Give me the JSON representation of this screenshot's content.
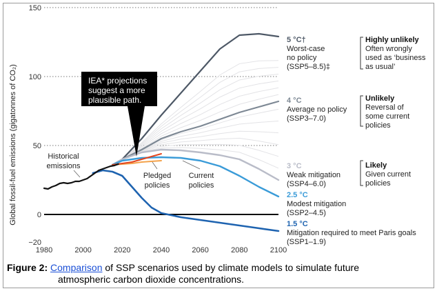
{
  "chart_data": {
    "type": "line",
    "ylabel": "Global fossil-fuel emissions (gigatonnes of CO₂)",
    "xlim": [
      1980,
      2100
    ],
    "ylim": [
      -20,
      150
    ],
    "xticks": [
      "1980",
      "2000",
      "2020",
      "2040",
      "2060",
      "2080",
      "2100"
    ],
    "yticks": [
      "150",
      "100",
      "50",
      "0",
      "−20"
    ],
    "grid": "dotted horizontal lines at 50, 100 and 150",
    "series": [
      {
        "name": "Historical emissions",
        "color": "#111111",
        "x": [
          1980,
          1982,
          1984,
          1986,
          1988,
          1990,
          1992,
          1994,
          1996,
          1998,
          2000,
          2002,
          2004,
          2006,
          2008,
          2010,
          2012,
          2014,
          2016,
          2018
        ],
        "y": [
          19,
          18.5,
          20,
          21,
          22.5,
          23,
          22.5,
          23,
          24,
          24,
          25,
          26,
          28,
          30,
          32,
          33,
          34,
          35,
          35.5,
          36.5
        ]
      },
      {
        "name": "SSP5-8.5",
        "color": "#4d5866",
        "x": [
          2015,
          2020,
          2030,
          2040,
          2050,
          2060,
          2070,
          2080,
          2090,
          2100
        ],
        "y": [
          36,
          40,
          55,
          72,
          88,
          104,
          120,
          130,
          131,
          129
        ]
      },
      {
        "name": "SSP3-7.0",
        "color": "#7d8894",
        "x": [
          2015,
          2020,
          2030,
          2040,
          2050,
          2060,
          2070,
          2080,
          2090,
          2100
        ],
        "y": [
          36,
          40,
          47,
          55,
          60,
          64,
          69,
          74,
          78,
          82
        ]
      },
      {
        "name": "SSP4-6.0",
        "color": "#b9bcc8",
        "x": [
          2015,
          2020,
          2030,
          2040,
          2050,
          2060,
          2070,
          2080,
          2090,
          2100
        ],
        "y": [
          36,
          40,
          45,
          47,
          46.5,
          45,
          43,
          40,
          33,
          25
        ]
      },
      {
        "name": "SSP2-4.5",
        "color": "#3a9bd8",
        "x": [
          2015,
          2020,
          2030,
          2040,
          2050,
          2060,
          2070,
          2080,
          2090,
          2100
        ],
        "y": [
          36,
          39,
          41,
          41.5,
          41,
          39,
          35,
          28,
          20,
          13
        ]
      },
      {
        "name": "SSP1-1.9",
        "color": "#1e63b0",
        "x": [
          2005,
          2010,
          2015,
          2020,
          2025,
          2030,
          2035,
          2040,
          2050,
          2060,
          2070,
          2080,
          2090,
          2100
        ],
        "y": [
          30,
          32,
          31,
          28,
          20,
          12,
          5,
          1,
          -2,
          -4,
          -6,
          -8,
          -10,
          -12
        ]
      },
      {
        "name": "Pledged policies",
        "color": "#e2451e",
        "x": [
          2015,
          2020,
          2025,
          2030,
          2035,
          2040
        ],
        "y": [
          36,
          37,
          38,
          40,
          42,
          44
        ]
      },
      {
        "name": "Current policies",
        "color": "#f4a24a",
        "x": [
          2015,
          2020,
          2025,
          2030,
          2035,
          2040
        ],
        "y": [
          36,
          36.5,
          37,
          38,
          38.5,
          39
        ]
      }
    ],
    "annotations": {
      "iea": "IEA* projections suggest a more plausible path.",
      "historical": [
        "Historical",
        "emissions"
      ],
      "pledged": [
        "Pledged",
        "policies"
      ],
      "current": [
        "Current",
        "policies"
      ]
    },
    "scenario_labels": [
      {
        "temp": "5 °C†",
        "temp_color": "#4d5866",
        "lines": [
          "Worst-case",
          "no policy",
          "(SSP5–8.5)‡"
        ]
      },
      {
        "temp": "4 °C",
        "temp_color": "#7d8894",
        "lines": [
          "Average no policy",
          "(SSP3–7.0)"
        ]
      },
      {
        "temp": "3 °C",
        "temp_color": "#b9bcc8",
        "lines": [
          "Weak mitigation",
          "(SSP4–6.0)"
        ]
      },
      {
        "temp": "2.5 °C",
        "temp_color": "#3a9bd8",
        "lines": [
          "Modest mitigation",
          "(SSP2–4.5)"
        ]
      },
      {
        "temp": "1.5 °C",
        "temp_color": "#1e63b0",
        "lines": [
          "Mitigation required to meet Paris goals",
          "(SSP1–1.9)"
        ]
      }
    ],
    "likelihood": [
      {
        "title": "Highly unlikely",
        "lines": [
          "Often wrongly",
          "used as ‘business",
          "as usual’"
        ]
      },
      {
        "title": "Unlikely",
        "lines": [
          "Reversal of",
          "some current",
          "policies"
        ]
      },
      {
        "title": "Likely",
        "lines": [
          "Given current",
          "policies"
        ]
      }
    ]
  },
  "caption": {
    "figure": "Figure 2:",
    "link": "Comparison",
    "line1_rest": " of SSP scenarios used by climate models to simulate future",
    "line2": "atmospheric carbon dioxide concentrations."
  }
}
